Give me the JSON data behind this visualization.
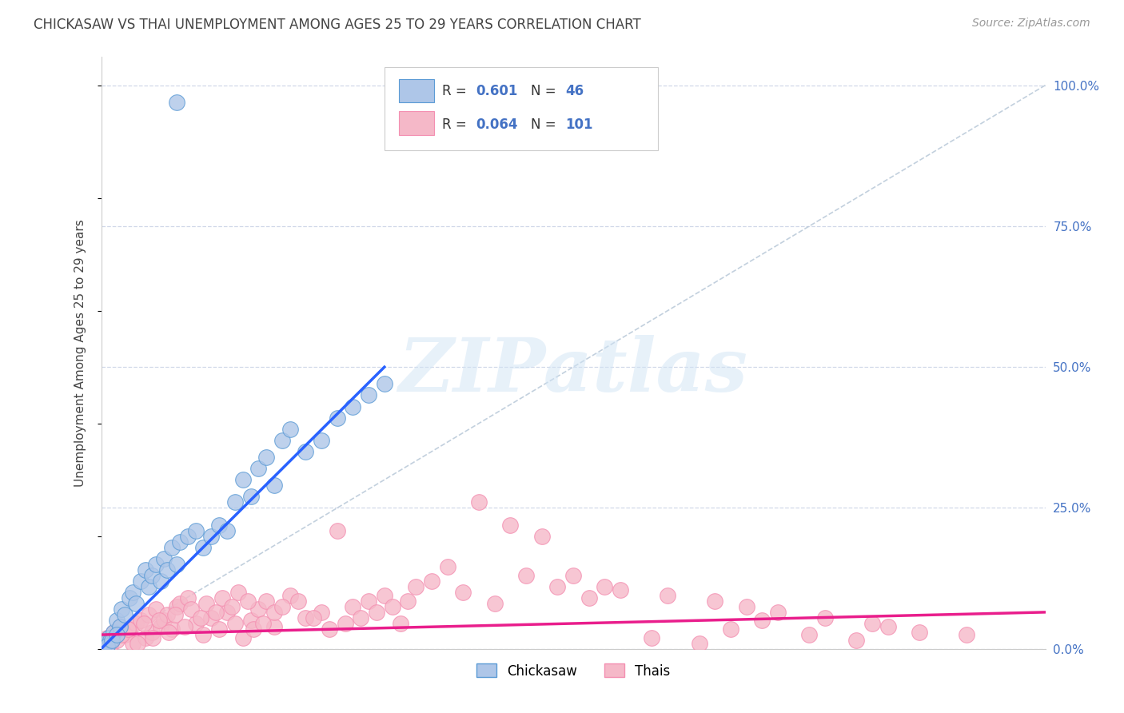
{
  "title": "CHICKASAW VS THAI UNEMPLOYMENT AMONG AGES 25 TO 29 YEARS CORRELATION CHART",
  "source": "Source: ZipAtlas.com",
  "ylabel": "Unemployment Among Ages 25 to 29 years",
  "ytick_labels": [
    "0.0%",
    "25.0%",
    "50.0%",
    "75.0%",
    "100.0%"
  ],
  "ytick_values": [
    0,
    25,
    50,
    75,
    100
  ],
  "xmin": 0,
  "xmax": 60,
  "ymin": 0,
  "ymax": 105,
  "chickasaw_color": "#aec6e8",
  "thais_color": "#f5b8c8",
  "chickasaw_edge_color": "#5b9bd5",
  "thais_edge_color": "#f48fb1",
  "chickasaw_line_color": "#2962ff",
  "thais_line_color": "#e91e8c",
  "ref_line_color": "#b8c8d8",
  "watermark_text": "ZIPatlas",
  "background_color": "#ffffff",
  "grid_color": "#d0d8e8",
  "axis_color": "#4472c4",
  "title_color": "#444444",
  "legend_r_chickasaw": "0.601",
  "legend_n_chickasaw": "46",
  "legend_r_thais": "0.064",
  "legend_n_thais": "101",
  "chickasaw_x": [
    0.3,
    0.5,
    0.6,
    0.8,
    1.0,
    1.2,
    1.3,
    1.5,
    1.8,
    2.0,
    2.2,
    2.5,
    2.8,
    3.0,
    3.2,
    3.5,
    3.8,
    4.0,
    4.2,
    4.5,
    4.8,
    5.0,
    5.5,
    6.0,
    6.5,
    7.0,
    7.5,
    8.0,
    8.5,
    9.0,
    9.5,
    10.0,
    10.5,
    11.0,
    11.5,
    12.0,
    13.0,
    14.0,
    15.0,
    16.0,
    17.0,
    18.0,
    0.4,
    0.7,
    1.0,
    4.8
  ],
  "chickasaw_y": [
    1.0,
    2.0,
    1.5,
    3.0,
    5.0,
    4.0,
    7.0,
    6.0,
    9.0,
    10.0,
    8.0,
    12.0,
    14.0,
    11.0,
    13.0,
    15.0,
    12.0,
    16.0,
    14.0,
    18.0,
    15.0,
    19.0,
    20.0,
    21.0,
    18.0,
    20.0,
    22.0,
    21.0,
    26.0,
    30.0,
    27.0,
    32.0,
    34.0,
    29.0,
    37.0,
    39.0,
    35.0,
    37.0,
    41.0,
    43.0,
    45.0,
    47.0,
    0.5,
    1.5,
    2.5,
    97.0
  ],
  "thais_x": [
    0.2,
    0.4,
    0.6,
    0.8,
    1.0,
    1.2,
    1.5,
    1.8,
    2.0,
    2.2,
    2.5,
    2.8,
    3.0,
    3.2,
    3.5,
    3.8,
    4.0,
    4.2,
    4.5,
    4.8,
    5.0,
    5.5,
    6.0,
    6.5,
    7.0,
    7.5,
    8.0,
    8.5,
    9.0,
    9.5,
    10.0,
    10.5,
    11.0,
    12.0,
    13.0,
    14.0,
    15.0,
    16.0,
    17.0,
    18.0,
    19.0,
    20.0,
    22.0,
    24.0,
    26.0,
    28.0,
    30.0,
    32.0,
    35.0,
    38.0,
    40.0,
    42.0,
    45.0,
    48.0,
    50.0,
    52.0,
    55.0,
    0.3,
    0.7,
    1.3,
    1.7,
    2.3,
    2.7,
    3.3,
    3.7,
    4.3,
    4.7,
    5.3,
    5.7,
    6.3,
    6.7,
    7.3,
    7.7,
    8.3,
    8.7,
    9.3,
    9.7,
    10.3,
    11.0,
    11.5,
    12.5,
    13.5,
    14.5,
    15.5,
    16.5,
    17.5,
    18.5,
    19.5,
    21.0,
    23.0,
    25.0,
    27.0,
    29.0,
    31.0,
    33.0,
    36.0,
    39.0,
    41.0,
    43.0,
    46.0,
    49.0
  ],
  "thais_y": [
    1.0,
    2.0,
    0.5,
    3.0,
    1.5,
    4.0,
    2.5,
    3.5,
    1.0,
    4.5,
    5.0,
    2.0,
    6.0,
    3.0,
    7.0,
    4.0,
    5.0,
    6.0,
    3.5,
    7.5,
    8.0,
    9.0,
    4.5,
    2.5,
    5.5,
    3.5,
    6.5,
    4.5,
    2.0,
    5.0,
    7.0,
    8.5,
    4.0,
    9.5,
    5.5,
    6.5,
    21.0,
    7.5,
    8.5,
    9.5,
    4.5,
    11.0,
    14.5,
    26.0,
    22.0,
    20.0,
    13.0,
    11.0,
    2.0,
    1.0,
    3.5,
    5.0,
    2.5,
    1.5,
    4.0,
    3.0,
    2.5,
    0.5,
    1.5,
    2.5,
    3.5,
    1.0,
    4.5,
    2.0,
    5.0,
    3.0,
    6.0,
    4.0,
    7.0,
    5.5,
    8.0,
    6.5,
    9.0,
    7.5,
    10.0,
    8.5,
    3.5,
    4.5,
    6.5,
    7.5,
    8.5,
    5.5,
    3.5,
    4.5,
    5.5,
    6.5,
    7.5,
    8.5,
    12.0,
    10.0,
    8.0,
    13.0,
    11.0,
    9.0,
    10.5,
    9.5,
    8.5,
    7.5,
    6.5,
    5.5,
    4.5
  ],
  "chick_line_x": [
    0,
    18
  ],
  "chick_line_y": [
    0,
    50
  ],
  "thai_line_x": [
    0,
    60
  ],
  "thai_line_y": [
    2.5,
    6.5
  ]
}
